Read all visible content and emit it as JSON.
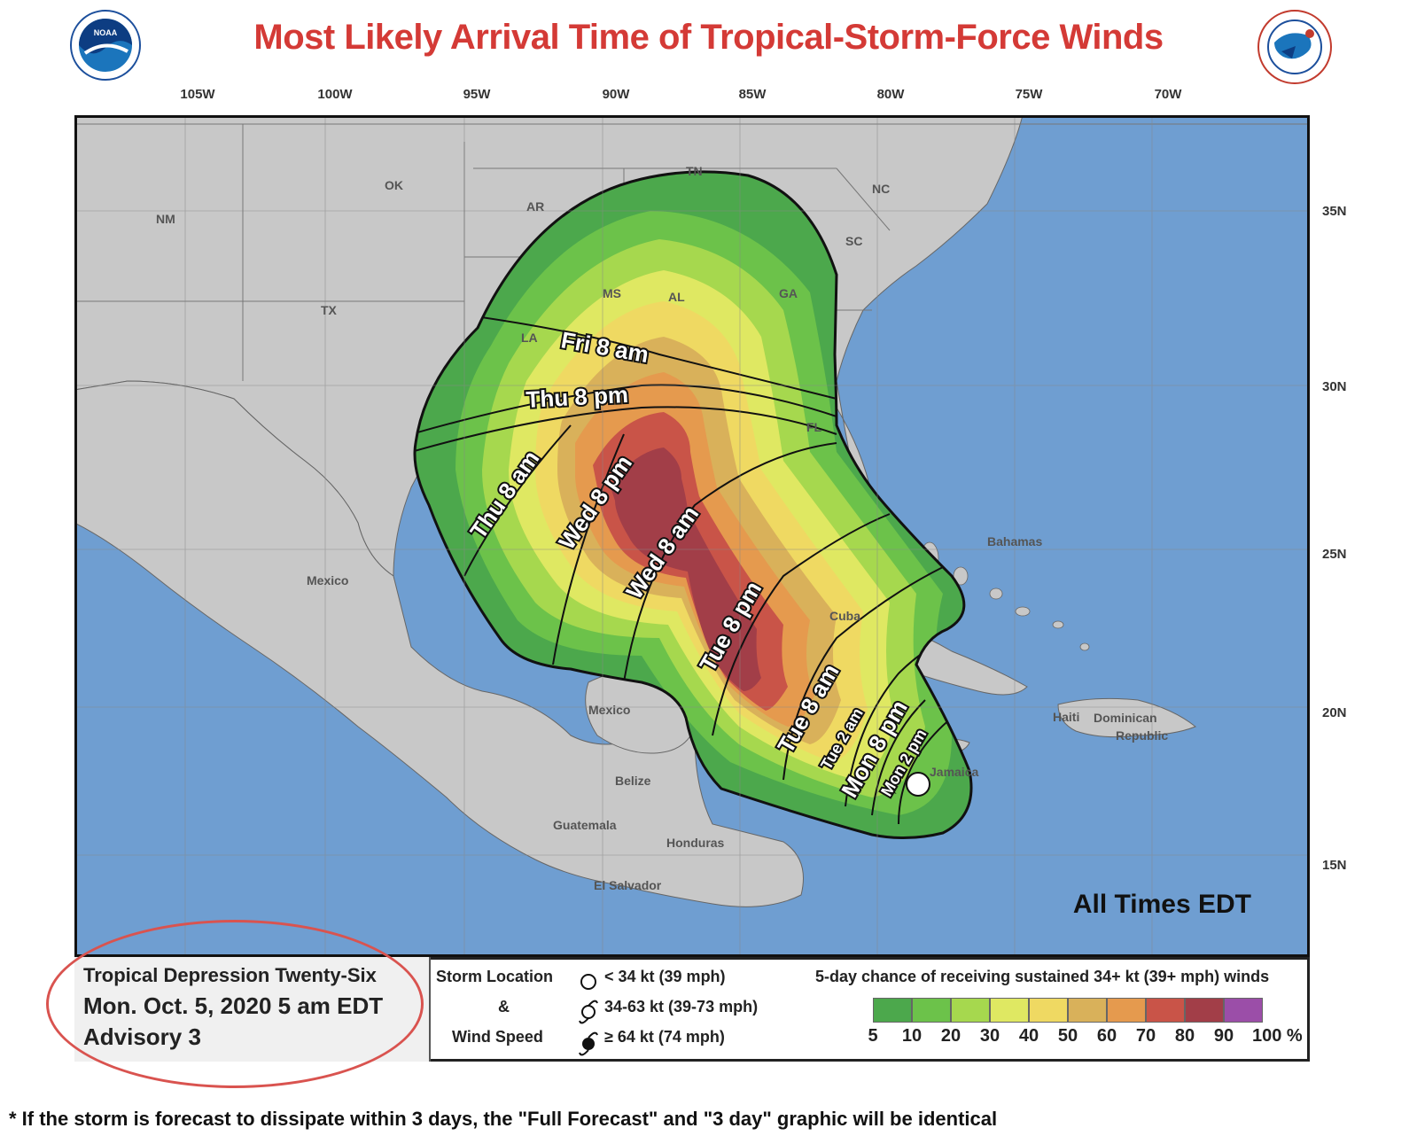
{
  "title": "Most Likely Arrival Time of Tropical-Storm-Force Winds",
  "logos": {
    "left_text": "NOAA",
    "right_text": "NATIONAL WEATHER SERVICE"
  },
  "longitudes": [
    "105W",
    "100W",
    "95W",
    "90W",
    "85W",
    "80W",
    "75W",
    "70W"
  ],
  "latitudes": [
    "35N",
    "30N",
    "25N",
    "20N",
    "15N"
  ],
  "places": {
    "NM": "NM",
    "OK": "OK",
    "TX": "TX",
    "AR": "AR",
    "TN": "TN",
    "NC": "NC",
    "SC": "SC",
    "MS": "MS",
    "AL": "AL",
    "GA": "GA",
    "LA": "LA",
    "FL": "FL",
    "Mexico1": "Mexico",
    "Mexico2": "Mexico",
    "Bahamas": "Bahamas",
    "Cuba": "Cuba",
    "Haiti": "Haiti",
    "Dominican": "Dominican",
    "Republic": "Republic",
    "Jamaica": "Jamaica",
    "Belize": "Belize",
    "Guatemala": "Guatemala",
    "Honduras": "Honduras",
    "ElSalvador": "El Salvador"
  },
  "arrival_times": [
    "Fri 8 am",
    "Thu 8 pm",
    "Thu 8 am",
    "Wed 8 pm",
    "Wed 8 am",
    "Tue 8 pm",
    "Tue 8 am",
    "Tue 2 am",
    "Mon 8 pm",
    "Mon 2 pm"
  ],
  "all_times": "All Times EDT",
  "info": {
    "storm_name": "Tropical Depression Twenty-Six",
    "datetime": "Mon. Oct. 5, 2020  5 am EDT",
    "advisory": "Advisory 3"
  },
  "storm_key": {
    "label1": "Storm Location",
    "label2": "&",
    "label3": "Wind Speed",
    "row1": "< 34 kt (39 mph)",
    "row2": "34-63 kt (39-73 mph)",
    "row3": "≥ 64 kt (74 mph)"
  },
  "probability_legend": {
    "title": "5-day chance of receiving sustained 34+ kt (39+ mph) winds",
    "labels": [
      "5",
      "10",
      "20",
      "30",
      "40",
      "50",
      "60",
      "70",
      "80",
      "90",
      "100 %"
    ],
    "colors": [
      "#4ca84c",
      "#6cc24a",
      "#a6d84e",
      "#dfe862",
      "#efd962",
      "#d9b15a",
      "#e59a4e",
      "#c95448",
      "#a23e48",
      "#9b4ea8"
    ]
  },
  "footnote": "* If the storm is forecast to dissipate within 3 days, the \"Full Forecast\" and \"3 day\" graphic will be identical"
}
